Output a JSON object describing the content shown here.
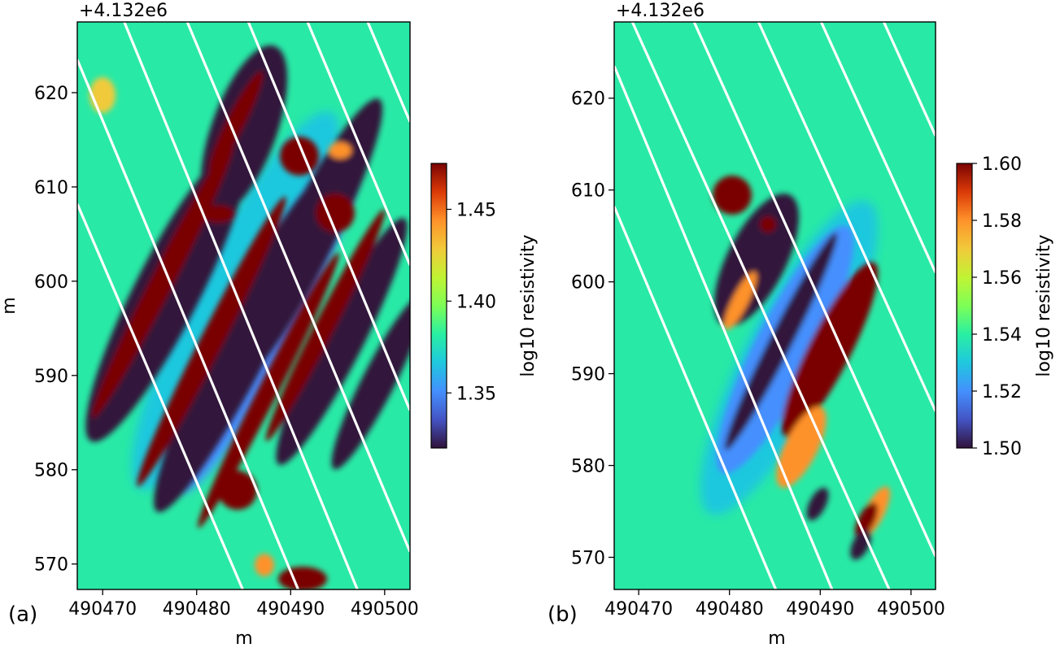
{
  "chart_data": [
    {
      "type": "heatmap",
      "panel_label": "(a)",
      "xlabel": "m",
      "ylabel": "m",
      "y_offset_label": "+4.132e6",
      "xlim": [
        490467.3,
        490502.7
      ],
      "ylim": [
        567.3,
        627.5
      ],
      "x_ticks": [
        490470,
        490480,
        490490,
        490500
      ],
      "x_tick_labels": [
        "490470",
        "490480",
        "490490",
        "490500"
      ],
      "y_ticks": [
        570,
        580,
        590,
        600,
        610,
        620
      ],
      "y_tick_labels": [
        "570",
        "580",
        "590",
        "600",
        "610",
        "620"
      ],
      "lines_color": "#ffffff",
      "survey_lines": [
        {
          "x1": 490467.3,
          "y1": 608.2,
          "x2": 490484.9,
          "y2": 567.3
        },
        {
          "x1": 490467.3,
          "y1": 623.5,
          "x2": 490490.8,
          "y2": 567.3
        },
        {
          "x1": 490472.3,
          "y1": 627.5,
          "x2": 490497.1,
          "y2": 567.3
        },
        {
          "x1": 490479.0,
          "y1": 627.5,
          "x2": 490502.7,
          "y2": 571.3
        },
        {
          "x1": 490485.5,
          "y1": 627.5,
          "x2": 490502.7,
          "y2": 586.3
        },
        {
          "x1": 490491.8,
          "y1": 627.5,
          "x2": 490502.7,
          "y2": 601.7
        },
        {
          "x1": 490498.2,
          "y1": 627.5,
          "x2": 490502.7,
          "y2": 616.9
        }
      ],
      "colorbar": {
        "label": "log10 resistivity",
        "min": 1.32,
        "max": 1.475,
        "ticks": [
          1.35,
          1.4,
          1.45
        ],
        "tick_labels": [
          "1.35",
          "1.40",
          "1.45"
        ],
        "colormap": "turbo"
      }
    },
    {
      "type": "heatmap",
      "panel_label": "(b)",
      "xlabel": "m",
      "ylabel": "",
      "y_offset_label": "+4.132e6",
      "xlim": [
        490467.3,
        490502.7
      ],
      "ylim": [
        566.5,
        628.3
      ],
      "x_ticks": [
        490470,
        490480,
        490490,
        490500
      ],
      "x_tick_labels": [
        "490470",
        "490480",
        "490490",
        "490500"
      ],
      "y_ticks": [
        570,
        580,
        590,
        600,
        610,
        620
      ],
      "y_tick_labels": [
        "570",
        "580",
        "590",
        "600",
        "610",
        "620"
      ],
      "lines_color": "#ffffff",
      "survey_lines": [
        {
          "x1": 490467.3,
          "y1": 608.2,
          "x2": 490485.1,
          "y2": 566.5
        },
        {
          "x1": 490467.3,
          "y1": 623.5,
          "x2": 490491.3,
          "y2": 566.5
        },
        {
          "x1": 490469.3,
          "y1": 628.3,
          "x2": 490497.6,
          "y2": 566.5
        },
        {
          "x1": 490476.1,
          "y1": 628.3,
          "x2": 490502.7,
          "y2": 570.1
        },
        {
          "x1": 490483.2,
          "y1": 628.3,
          "x2": 490502.7,
          "y2": 585.9
        },
        {
          "x1": 490490.1,
          "y1": 628.3,
          "x2": 490502.7,
          "y2": 601.0
        },
        {
          "x1": 490497.0,
          "y1": 628.3,
          "x2": 490502.7,
          "y2": 615.9
        }
      ],
      "colorbar": {
        "label": "log10 resistivity",
        "min": 1.5,
        "max": 1.6,
        "ticks": [
          1.5,
          1.52,
          1.54,
          1.56,
          1.58,
          1.6
        ],
        "tick_labels": [
          "1.50",
          "1.52",
          "1.54",
          "1.56",
          "1.58",
          "1.60"
        ],
        "colormap": "turbo"
      }
    }
  ]
}
